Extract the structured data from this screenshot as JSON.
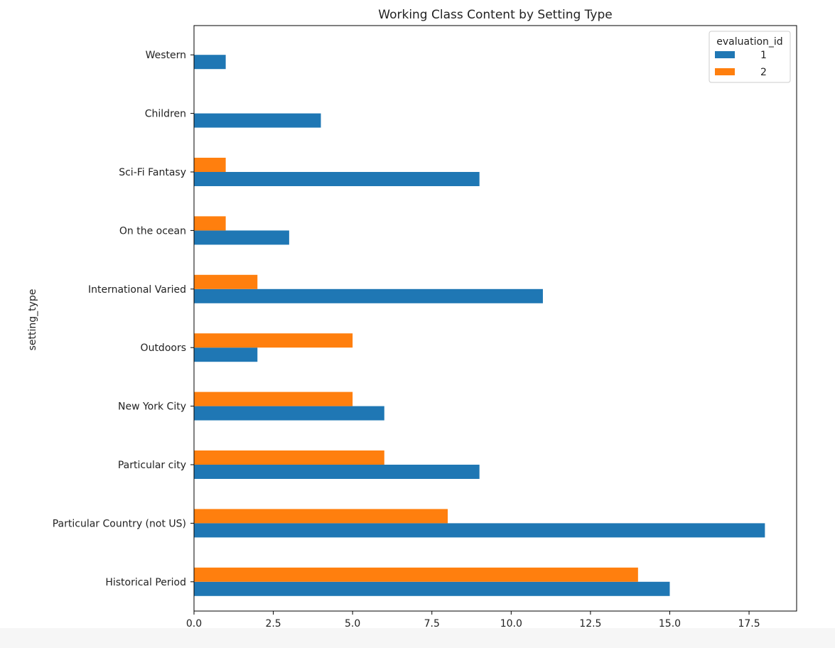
{
  "chart_data": {
    "type": "bar",
    "orientation": "horizontal",
    "title": "Working Class Content by Setting Type",
    "xlabel": "",
    "ylabel": "setting_type",
    "categories": [
      "Historical Period",
      "Particular Country (not US)",
      "Particular city",
      "New York City",
      "Outdoors",
      "International Varied",
      "On the ocean",
      "Sci-Fi Fantasy",
      "Children",
      "Western"
    ],
    "series": [
      {
        "name": "1",
        "color": "#1f77b4",
        "values": [
          15,
          18,
          9,
          6,
          2,
          11,
          3,
          9,
          4,
          1
        ]
      },
      {
        "name": "2",
        "color": "#ff7f0e",
        "values": [
          14,
          8,
          6,
          5,
          5,
          2,
          1,
          1,
          0,
          0
        ]
      }
    ],
    "xlim": [
      0,
      19
    ],
    "xticks": [
      0,
      2.5,
      5,
      7.5,
      10,
      12.5,
      15,
      17.5
    ],
    "xtick_labels": [
      "0.0",
      "2.5",
      "5.0",
      "7.5",
      "10.0",
      "12.5",
      "15.0",
      "17.5"
    ],
    "legend": {
      "title": "evaluation_id",
      "placement": "top-right"
    },
    "grid": false
  }
}
